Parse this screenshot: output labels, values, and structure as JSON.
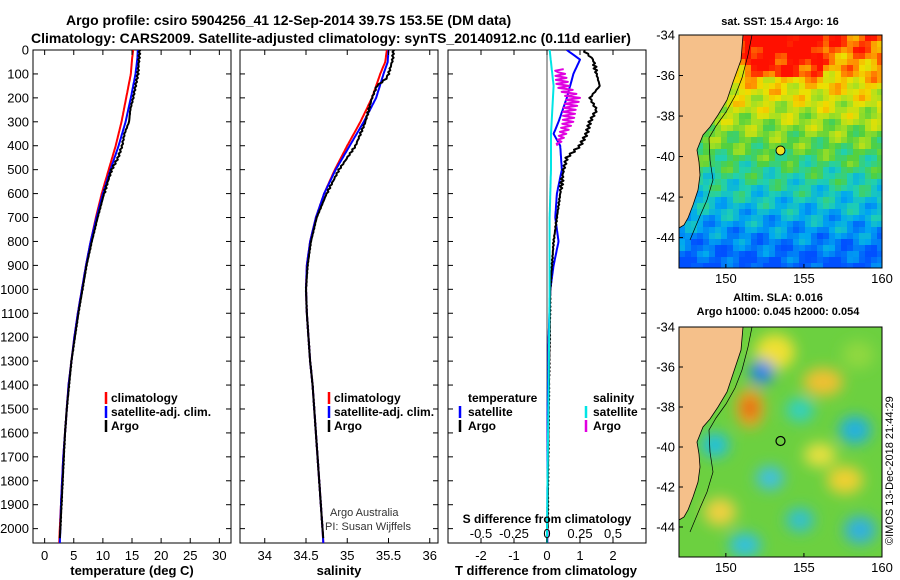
{
  "title_line1": "Argo profile: csiro 5904256_41 12-Sep-2014 39.7S 153.5E (DM data)",
  "title_line2": "Climatology: CARS2009. Satellite-adjusted climatology: synTS_20140912.nc (0.11d earlier)",
  "colors": {
    "climatology": "#ff0000",
    "satellite": "#0000ff",
    "argo": "#000000",
    "s_satellite": "#00e5e5",
    "s_argo": "#e000e0"
  },
  "chart_data": [
    {
      "type": "line",
      "name": "temperature",
      "xlabel": "temperature (deg C)",
      "xlim": [
        -2,
        32
      ],
      "ylim": [
        0,
        2060
      ],
      "xticks": [
        "0",
        "5",
        "10",
        "15",
        "20",
        "25",
        "30"
      ],
      "xtick_values": [
        0,
        5,
        10,
        15,
        20,
        25,
        30
      ],
      "yticks": [
        "0",
        "100",
        "200",
        "300",
        "400",
        "500",
        "600",
        "700",
        "800",
        "900",
        "1000",
        "1100",
        "1200",
        "1300",
        "1400",
        "1500",
        "1600",
        "1700",
        "1800",
        "1900",
        "2000"
      ],
      "ytick_values": [
        0,
        100,
        200,
        300,
        400,
        500,
        600,
        700,
        800,
        900,
        1000,
        1100,
        1200,
        1300,
        1400,
        1500,
        1600,
        1700,
        1800,
        1900,
        2000
      ],
      "series": [
        {
          "name": "climatology",
          "color": "#ff0000",
          "points": [
            [
              15.2,
              0
            ],
            [
              15,
              40
            ],
            [
              14.8,
              100
            ],
            [
              14,
              200
            ],
            [
              13.2,
              300
            ],
            [
              12.2,
              400
            ],
            [
              11,
              500
            ],
            [
              9.8,
              600
            ],
            [
              8.8,
              700
            ],
            [
              7.9,
              800
            ],
            [
              7.1,
              900
            ],
            [
              6.4,
              1000
            ],
            [
              5.7,
              1100
            ],
            [
              5.1,
              1200
            ],
            [
              4.6,
              1300
            ],
            [
              4.1,
              1400
            ],
            [
              3.8,
              1500
            ],
            [
              3.5,
              1600
            ],
            [
              3.2,
              1700
            ],
            [
              3,
              1800
            ],
            [
              2.8,
              1900
            ],
            [
              2.6,
              2000
            ],
            [
              2.5,
              2060
            ]
          ]
        },
        {
          "name": "satellite-adj. clim.",
          "color": "#0000ff",
          "points": [
            [
              16,
              0
            ],
            [
              15.9,
              40
            ],
            [
              15.6,
              100
            ],
            [
              14.8,
              200
            ],
            [
              13.9,
              300
            ],
            [
              12.7,
              400
            ],
            [
              11.3,
              500
            ],
            [
              10,
              600
            ],
            [
              8.9,
              700
            ],
            [
              7.9,
              800
            ],
            [
              7.1,
              900
            ],
            [
              6.4,
              1000
            ],
            [
              5.7,
              1100
            ],
            [
              5.1,
              1200
            ],
            [
              4.6,
              1300
            ],
            [
              4.1,
              1400
            ],
            [
              3.8,
              1500
            ],
            [
              3.5,
              1600
            ],
            [
              3.2,
              1700
            ],
            [
              3,
              1800
            ],
            [
              2.8,
              1900
            ],
            [
              2.7,
              2000
            ],
            [
              2.6,
              2060
            ]
          ]
        },
        {
          "name": "Argo",
          "color": "#000000",
          "points": [
            [
              16.3,
              0
            ],
            [
              16.2,
              40
            ],
            [
              16,
              100
            ],
            [
              15.6,
              150
            ],
            [
              15.2,
              200
            ],
            [
              14.7,
              250
            ],
            [
              14.5,
              300
            ],
            [
              13.7,
              350
            ],
            [
              13.3,
              400
            ],
            [
              12.6,
              450
            ],
            [
              11.5,
              500
            ],
            [
              10.2,
              600
            ],
            [
              9.1,
              700
            ],
            [
              8.1,
              800
            ],
            [
              7.2,
              900
            ],
            [
              6.5,
              1000
            ],
            [
              5.8,
              1100
            ],
            [
              5.2,
              1200
            ],
            [
              4.6,
              1300
            ],
            [
              4.2,
              1400
            ],
            [
              3.8,
              1500
            ],
            [
              3.5,
              1600
            ],
            [
              3.3,
              1700
            ],
            [
              3.1,
              1800
            ],
            [
              2.9,
              1900
            ],
            [
              2.7,
              2000
            ],
            [
              2.6,
              2040
            ]
          ]
        }
      ],
      "legend": [
        "climatology",
        "satellite-adj. clim.",
        "Argo"
      ]
    },
    {
      "type": "line",
      "name": "salinity",
      "xlabel": "salinity",
      "xlim": [
        33.7,
        36.1
      ],
      "ylim": [
        0,
        2060
      ],
      "xticks": [
        "34",
        "34.5",
        "35",
        "35.5",
        "36"
      ],
      "xtick_values": [
        34,
        34.5,
        35,
        35.5,
        36
      ],
      "series": [
        {
          "name": "climatology",
          "color": "#ff0000",
          "points": [
            [
              35.48,
              0
            ],
            [
              35.46,
              50
            ],
            [
              35.4,
              100
            ],
            [
              35.3,
              200
            ],
            [
              35.16,
              300
            ],
            [
              35,
              400
            ],
            [
              34.85,
              500
            ],
            [
              34.72,
              600
            ],
            [
              34.62,
              700
            ],
            [
              34.55,
              800
            ],
            [
              34.51,
              900
            ],
            [
              34.5,
              1000
            ],
            [
              34.51,
              1100
            ],
            [
              34.53,
              1200
            ],
            [
              34.55,
              1300
            ],
            [
              34.58,
              1400
            ],
            [
              34.6,
              1500
            ],
            [
              34.62,
              1600
            ],
            [
              34.64,
              1700
            ],
            [
              34.66,
              1800
            ],
            [
              34.68,
              1900
            ],
            [
              34.7,
              2000
            ],
            [
              34.71,
              2060
            ]
          ]
        },
        {
          "name": "satellite-adj. clim.",
          "color": "#0000ff",
          "points": [
            [
              35.5,
              0
            ],
            [
              35.49,
              50
            ],
            [
              35.44,
              100
            ],
            [
              35.35,
              200
            ],
            [
              35.2,
              300
            ],
            [
              35.03,
              400
            ],
            [
              34.86,
              500
            ],
            [
              34.72,
              600
            ],
            [
              34.62,
              700
            ],
            [
              34.55,
              800
            ],
            [
              34.51,
              900
            ],
            [
              34.5,
              1000
            ],
            [
              34.51,
              1100
            ],
            [
              34.53,
              1200
            ],
            [
              34.55,
              1300
            ],
            [
              34.58,
              1400
            ],
            [
              34.6,
              1500
            ],
            [
              34.62,
              1600
            ],
            [
              34.64,
              1700
            ],
            [
              34.66,
              1800
            ],
            [
              34.68,
              1900
            ],
            [
              34.7,
              2000
            ],
            [
              34.71,
              2060
            ]
          ]
        },
        {
          "name": "Argo",
          "color": "#000000",
          "points": [
            [
              35.56,
              0
            ],
            [
              35.55,
              40
            ],
            [
              35.5,
              100
            ],
            [
              35.47,
              120
            ],
            [
              35.36,
              150
            ],
            [
              35.3,
              200
            ],
            [
              35.22,
              300
            ],
            [
              35.1,
              400
            ],
            [
              34.9,
              500
            ],
            [
              34.75,
              600
            ],
            [
              34.63,
              700
            ],
            [
              34.56,
              800
            ],
            [
              34.52,
              900
            ],
            [
              34.5,
              1000
            ],
            [
              34.51,
              1100
            ],
            [
              34.53,
              1200
            ],
            [
              34.55,
              1300
            ],
            [
              34.58,
              1400
            ],
            [
              34.6,
              1500
            ],
            [
              34.62,
              1600
            ],
            [
              34.64,
              1700
            ],
            [
              34.66,
              1800
            ],
            [
              34.68,
              1900
            ],
            [
              34.7,
              2000
            ],
            [
              34.71,
              2040
            ]
          ]
        }
      ],
      "legend": [
        "climatology",
        "satellite-adj. clim.",
        "Argo"
      ],
      "annotations": [
        "Argo Australia",
        "PI: Susan Wijffels"
      ]
    },
    {
      "type": "line",
      "name": "differences",
      "xlabel": "T difference from climatology",
      "xlabel_top": "S difference from climatology",
      "xlim": [
        -3,
        3
      ],
      "ylim": [
        0,
        2060
      ],
      "xticks": [
        "-2",
        "-1",
        "0",
        "1",
        "2"
      ],
      "xtick_values": [
        -2,
        -1,
        0,
        1,
        2
      ],
      "sticks": [
        "-0.5",
        "-0.25",
        "0",
        "0.25",
        "0.5"
      ],
      "stick_values": [
        -0.5,
        -0.25,
        0,
        0.25,
        0.5
      ],
      "slim": [
        -0.75,
        0.75
      ],
      "series": [
        {
          "name": "temperature satellite",
          "color": "#0000ff",
          "axis": "T",
          "points": [
            [
              0.6,
              0
            ],
            [
              1.0,
              40
            ],
            [
              0.8,
              100
            ],
            [
              0.6,
              200
            ],
            [
              0.35,
              300
            ],
            [
              0.2,
              350
            ],
            [
              0.4,
              400
            ],
            [
              0.45,
              500
            ],
            [
              0.3,
              600
            ],
            [
              0.25,
              700
            ],
            [
              0.35,
              800
            ],
            [
              0.2,
              900
            ],
            [
              0.1,
              1000
            ],
            [
              0.05,
              1200
            ],
            [
              0.02,
              1500
            ],
            [
              0.01,
              2000
            ],
            [
              0.01,
              2060
            ]
          ]
        },
        {
          "name": "temperature Argo",
          "color": "#000000",
          "axis": "T",
          "points": [
            [
              1.1,
              0
            ],
            [
              1.4,
              40
            ],
            [
              1.5,
              100
            ],
            [
              1.6,
              150
            ],
            [
              1.3,
              200
            ],
            [
              1.5,
              250
            ],
            [
              1.3,
              300
            ],
            [
              1.2,
              350
            ],
            [
              1.0,
              400
            ],
            [
              0.6,
              450
            ],
            [
              0.5,
              500
            ],
            [
              0.4,
              600
            ],
            [
              0.3,
              700
            ],
            [
              0.2,
              800
            ],
            [
              0.15,
              900
            ],
            [
              0.1,
              1000
            ],
            [
              0.08,
              1200
            ],
            [
              0.05,
              1500
            ],
            [
              0.03,
              1800
            ],
            [
              0.02,
              2000
            ]
          ]
        },
        {
          "name": "salinity satellite",
          "color": "#00e5e5",
          "axis": "S",
          "points": [
            [
              0.02,
              0
            ],
            [
              0.03,
              50
            ],
            [
              0.04,
              100
            ],
            [
              0.05,
              150
            ],
            [
              0.04,
              250
            ],
            [
              0.03,
              350
            ],
            [
              0.03,
              500
            ],
            [
              0.02,
              700
            ],
            [
              0.02,
              1000
            ],
            [
              0.01,
              1500
            ],
            [
              0.0,
              2000
            ],
            [
              0.0,
              2060
            ]
          ]
        },
        {
          "name": "salinity Argo",
          "color": "#e000e0",
          "axis": "S",
          "points": [
            [
              0.08,
              80
            ],
            [
              0.1,
              100
            ],
            [
              0.12,
              150
            ],
            [
              0.2,
              200
            ],
            [
              0.17,
              250
            ],
            [
              0.16,
              300
            ],
            [
              0.12,
              350
            ],
            [
              0.08,
              400
            ]
          ]
        }
      ],
      "legend_left": {
        "header": "temperature",
        "items": [
          "satellite",
          "Argo"
        ]
      },
      "legend_right": {
        "header": "salinity",
        "items": [
          "satellite",
          "Argo"
        ]
      }
    },
    {
      "type": "heatmap",
      "name": "sst-map",
      "title": "sat. SST: 15.4 Argo: 16",
      "xlim": [
        147,
        160
      ],
      "ylim": [
        -45.5,
        -34
      ],
      "xticks": [
        "150",
        "155",
        "160"
      ],
      "xtick_values": [
        150,
        155,
        160
      ],
      "yticks": [
        "-34",
        "-36",
        "-38",
        "-40",
        "-42",
        "-44"
      ],
      "ytick_values": [
        -34,
        -36,
        -38,
        -40,
        -42,
        -44
      ],
      "marker": {
        "lon": 153.5,
        "lat": -39.7
      }
    },
    {
      "type": "heatmap",
      "name": "sla-map",
      "title": "Altim. SLA: 0.016",
      "subtitle": "Argo h1000: 0.045 h2000: 0.054",
      "xlim": [
        147,
        160
      ],
      "ylim": [
        -45.5,
        -34
      ],
      "xticks": [
        "150",
        "155",
        "160"
      ],
      "xtick_values": [
        150,
        155,
        160
      ],
      "yticks": [
        "-34",
        "-36",
        "-38",
        "-40",
        "-42",
        "-44"
      ],
      "ytick_values": [
        -34,
        -36,
        -38,
        -40,
        -42,
        -44
      ],
      "marker": {
        "lon": 153.5,
        "lat": -39.7
      }
    }
  ],
  "credit_vertical": "©IMOS 13-Dec-2018 21:44:29"
}
